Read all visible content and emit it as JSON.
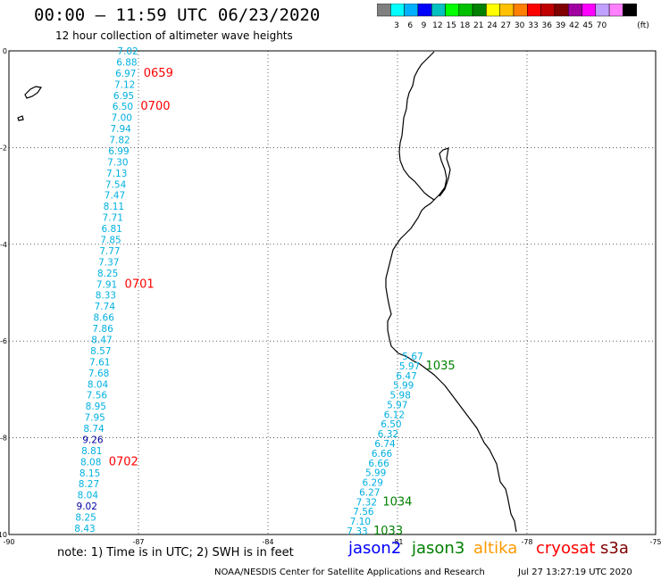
{
  "header": {
    "title": "00:00 – 11:59 UTC 06/23/2020",
    "subtitle": "12 hour collection of altimeter wave heights"
  },
  "colorbar": {
    "colors": [
      "#808080",
      "#00ffff",
      "#00b0ff",
      "#0000ff",
      "#00c0c0",
      "#00ff00",
      "#00c000",
      "#008000",
      "#ffff00",
      "#ffc000",
      "#ff8000",
      "#ff0000",
      "#c00000",
      "#800000",
      "#a000a0",
      "#ff00ff",
      "#c0a0ff",
      "#ff80ff",
      "#000000"
    ],
    "labels": [
      "3",
      "6",
      "9",
      "12",
      "15",
      "18",
      "21",
      "24",
      "27",
      "30",
      "33",
      "36",
      "39",
      "42",
      "45",
      "70"
    ],
    "unit": "(ft)"
  },
  "axes": {
    "x_ticks": [
      "-90",
      "-87",
      "-84",
      "-81",
      "-78",
      "-75"
    ],
    "y_ticks": [
      "0",
      "-2",
      "-4",
      "-6",
      "-8",
      "-10"
    ]
  },
  "track1": {
    "color": "#00b0e0",
    "values": [
      "7.02",
      "6.88",
      "6.97",
      "7.12",
      "6.95",
      "6.50",
      "7.00",
      "7.94",
      "7.82",
      "6.99",
      "7.30",
      "7.13",
      "7.54",
      "7.47",
      "8.11",
      "7.71",
      "6.81",
      "7.85",
      "7.77",
      "7.37",
      "8.25",
      "7.91",
      "8.33",
      "7.74",
      "8.66",
      "7.86",
      "8.47",
      "8.57",
      "7.61",
      "7.68",
      "8.04",
      "7.56",
      "8.95",
      "7.95",
      "8.74",
      "9.26",
      "8.81",
      "8.08",
      "8.15",
      "8.27",
      "8.04",
      "9.02",
      "8.25",
      "8.43"
    ],
    "dark_indices": [
      35,
      41
    ],
    "dark_color": "#0000a0",
    "times": [
      {
        "label": "0659",
        "index": 2
      },
      {
        "label": "0700",
        "index": 5
      },
      {
        "label": "0701",
        "index": 21
      },
      {
        "label": "0702",
        "index": 37
      }
    ],
    "time_color": "#ff0000"
  },
  "track2": {
    "color": "#00b0e0",
    "values": [
      "5.67",
      "5.97",
      "6.47",
      "5.99",
      "5.98",
      "5.97",
      "6.12",
      "6.50",
      "6.32",
      "6.74",
      "6.66",
      "6.66",
      "5.99",
      "6.29",
      "6.27",
      "7.32",
      "7.56",
      "7.10",
      "7.33"
    ],
    "times": [
      {
        "label": "1035",
        "index": 1
      },
      {
        "label": "1034",
        "index": 15
      },
      {
        "label": "1033",
        "index": 18
      }
    ],
    "time_color": "#008000"
  },
  "note": "note: 1) Time is in UTC; 2) SWH is in feet",
  "legend": [
    {
      "name": "jason2",
      "color": "#0000ff"
    },
    {
      "name": "jason3",
      "color": "#008000"
    },
    {
      "name": "altika",
      "color": "#ff9900"
    },
    {
      "name": "cryosat",
      "color": "#ff0000"
    },
    {
      "name": "s3a",
      "color": "#800000"
    }
  ],
  "footer": {
    "credit": "NOAA/NESDIS Center for Satellite Applications and Research",
    "timestamp": "Jul 27 13:27:19 UTC 2020"
  }
}
